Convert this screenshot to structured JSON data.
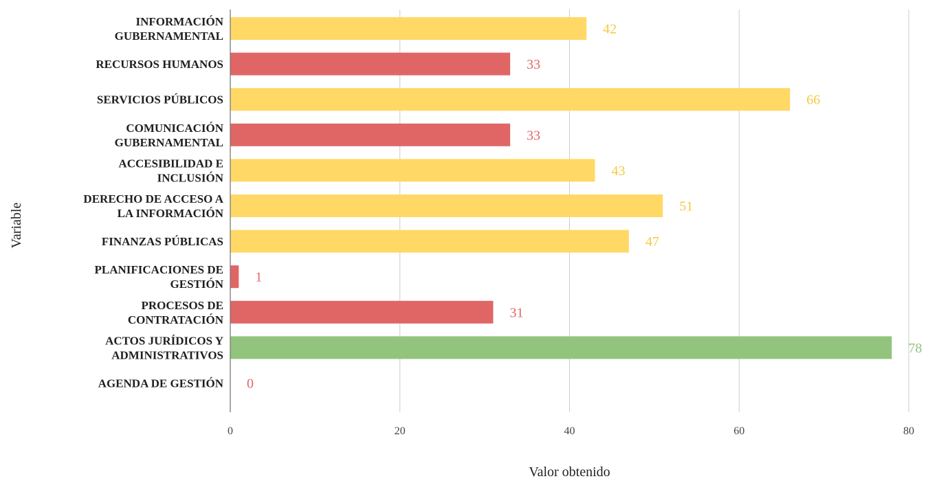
{
  "chart_data": {
    "type": "bar",
    "orientation": "horizontal",
    "xlabel": "Valor obtenido",
    "ylabel": "Variable",
    "xlim": [
      0,
      80
    ],
    "xticks": [
      0,
      20,
      40,
      60,
      80
    ],
    "grid": "vertical",
    "legend": "none",
    "categories": [
      [
        "INFORMACIÓN",
        "GUBERNAMENTAL"
      ],
      [
        "RECURSOS HUMANOS"
      ],
      [
        "SERVICIOS PÚBLICOS"
      ],
      [
        "COMUNICACIÓN",
        "GUBERNAMENTAL"
      ],
      [
        "ACCESIBILIDAD E",
        "INCLUSIÓN"
      ],
      [
        "DERECHO DE ACCESO A",
        "LA INFORMACIÓN"
      ],
      [
        "FINANZAS PÚBLICAS"
      ],
      [
        "PLANIFICACIONES DE",
        "GESTIÓN"
      ],
      [
        "PROCESOS DE",
        "CONTRATACIÓN"
      ],
      [
        "ACTOS JURÍDICOS Y",
        "ADMINISTRATIVOS"
      ],
      [
        "AGENDA DE GESTIÓN"
      ]
    ],
    "values": [
      42,
      33,
      66,
      33,
      43,
      51,
      47,
      1,
      31,
      78,
      0
    ],
    "bar_colors": [
      "#FFD866",
      "#E06666",
      "#FFD866",
      "#E06666",
      "#FFD866",
      "#FFD866",
      "#FFD866",
      "#E06666",
      "#E06666",
      "#93C47D",
      "#E06666"
    ],
    "label_colors": [
      "#F5C842",
      "#E06666",
      "#F5C842",
      "#E06666",
      "#F5C842",
      "#F5C842",
      "#F5C842",
      "#E06666",
      "#E06666",
      "#93C47D",
      "#E06666"
    ]
  }
}
